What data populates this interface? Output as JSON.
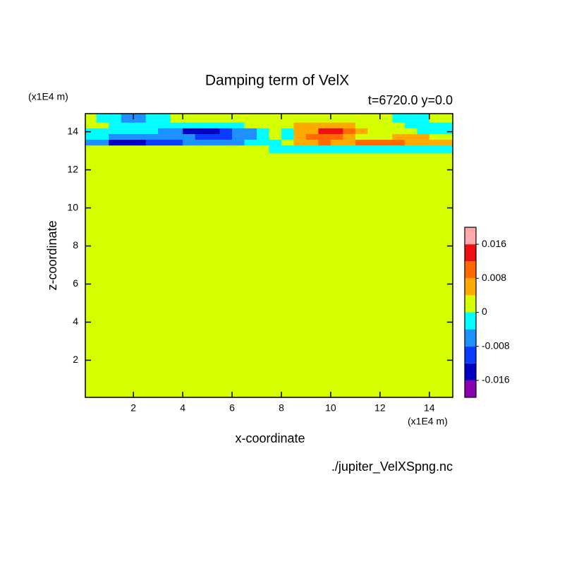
{
  "chart_data": {
    "type": "contour",
    "title": "Damping term of VelX",
    "subtitle": "t=6720.0 y=0.0",
    "x_label": "x-coordinate",
    "y_label": "z-coordinate",
    "x_unit": "(x1E4 m)",
    "y_unit": "(x1E4 m)",
    "source": "./jupiter_VelXSpng.nc",
    "xlim": [
      0.05,
      14.95
    ],
    "ylim": [
      0.05,
      14.95
    ],
    "xticks": [
      2,
      4,
      6,
      8,
      10,
      12,
      14
    ],
    "yticks": [
      2,
      4,
      6,
      8,
      10,
      12,
      14
    ],
    "x_edges": [
      0,
      0.5,
      1,
      1.5,
      2,
      2.5,
      3,
      3.5,
      4,
      4.5,
      5,
      5.5,
      6,
      6.5,
      7,
      7.5,
      8,
      8.5,
      9,
      9.5,
      10,
      10.5,
      11,
      11.5,
      12,
      12.5,
      13,
      13.5,
      14,
      14.5,
      15
    ],
    "z_edges": [
      0,
      12.9,
      13.3,
      13.6,
      13.9,
      14.2,
      14.5,
      15
    ],
    "values": [
      [
        0.001,
        0.001,
        0.001,
        0.001,
        0.001,
        0.001,
        0.001,
        0.001,
        0.001,
        0.001,
        0.001,
        0.001,
        0.001,
        0.001,
        0.001,
        0.001,
        0.001,
        0.001,
        0.001,
        0.001,
        0.001,
        0.001,
        0.001,
        0.001,
        0.001,
        0.001,
        0.001,
        0.001,
        0.001,
        0.001
      ],
      [
        0.001,
        0.001,
        0.001,
        0.001,
        0.001,
        0.001,
        0.001,
        0.001,
        0.001,
        0.001,
        0.001,
        0.001,
        0.001,
        0.001,
        0.001,
        -0.002,
        -0.002,
        -0.002,
        -0.002,
        -0.002,
        -0.002,
        -0.002,
        -0.002,
        -0.002,
        -0.002,
        -0.002,
        -0.002,
        -0.002,
        -0.002,
        -0.002
      ],
      [
        -0.006,
        -0.006,
        -0.014,
        -0.014,
        -0.014,
        -0.01,
        -0.01,
        -0.01,
        -0.006,
        -0.006,
        -0.006,
        -0.006,
        -0.006,
        -0.002,
        -0.002,
        -0.002,
        0.001,
        0.006,
        0.006,
        0.01,
        0.006,
        0.006,
        0.01,
        0.01,
        0.01,
        0.01,
        0.006,
        0.006,
        0.006,
        0.006
      ],
      [
        -0.002,
        -0.002,
        -0.006,
        -0.006,
        -0.006,
        -0.006,
        -0.006,
        -0.006,
        -0.006,
        -0.01,
        -0.01,
        -0.01,
        -0.006,
        -0.006,
        -0.002,
        0.001,
        -0.002,
        0.006,
        0.01,
        0.01,
        0.01,
        0.006,
        0.001,
        0.001,
        0.001,
        0.006,
        0.006,
        0.006,
        0.001,
        0.001
      ],
      [
        -0.002,
        -0.002,
        -0.002,
        -0.002,
        -0.002,
        -0.002,
        -0.006,
        -0.006,
        -0.014,
        -0.014,
        -0.014,
        -0.01,
        -0.006,
        -0.006,
        -0.002,
        0.001,
        -0.002,
        0.006,
        0.006,
        0.014,
        0.014,
        0.01,
        0.006,
        0.001,
        0.001,
        0.001,
        0.001,
        -0.002,
        -0.002,
        -0.002
      ],
      [
        0.001,
        0.001,
        -0.002,
        -0.002,
        -0.002,
        -0.002,
        -0.002,
        -0.002,
        -0.002,
        -0.002,
        -0.002,
        -0.002,
        -0.002,
        0.001,
        0.001,
        0.001,
        0.001,
        0.006,
        0.006,
        0.006,
        0.006,
        0.006,
        0.001,
        0.001,
        0.001,
        0.001,
        -0.002,
        -0.002,
        -0.002,
        -0.002
      ],
      [
        0.001,
        -0.002,
        -0.002,
        -0.006,
        -0.006,
        -0.002,
        -0.002,
        0.001,
        0.001,
        0.001,
        0.001,
        0.001,
        0.001,
        0.001,
        0.001,
        0.001,
        0.001,
        0.001,
        0.001,
        0.001,
        0.001,
        0.001,
        0.001,
        0.001,
        0.001,
        -0.002,
        -0.002,
        -0.002,
        0.001,
        0.001
      ]
    ],
    "levels": [
      -0.02,
      -0.016,
      -0.012,
      -0.008,
      -0.004,
      0,
      0.004,
      0.008,
      0.012,
      0.016,
      0.02
    ],
    "colors": [
      "#8a00b0",
      "#0000c0",
      "#0a3cff",
      "#1e90ff",
      "#00ffff",
      "#d4ff00",
      "#ffaa00",
      "#ff6a00",
      "#ee1010",
      "#ffaaaa"
    ],
    "colorbar_ticks": [
      -0.016,
      -0.008,
      0,
      0.008,
      0.016
    ]
  }
}
